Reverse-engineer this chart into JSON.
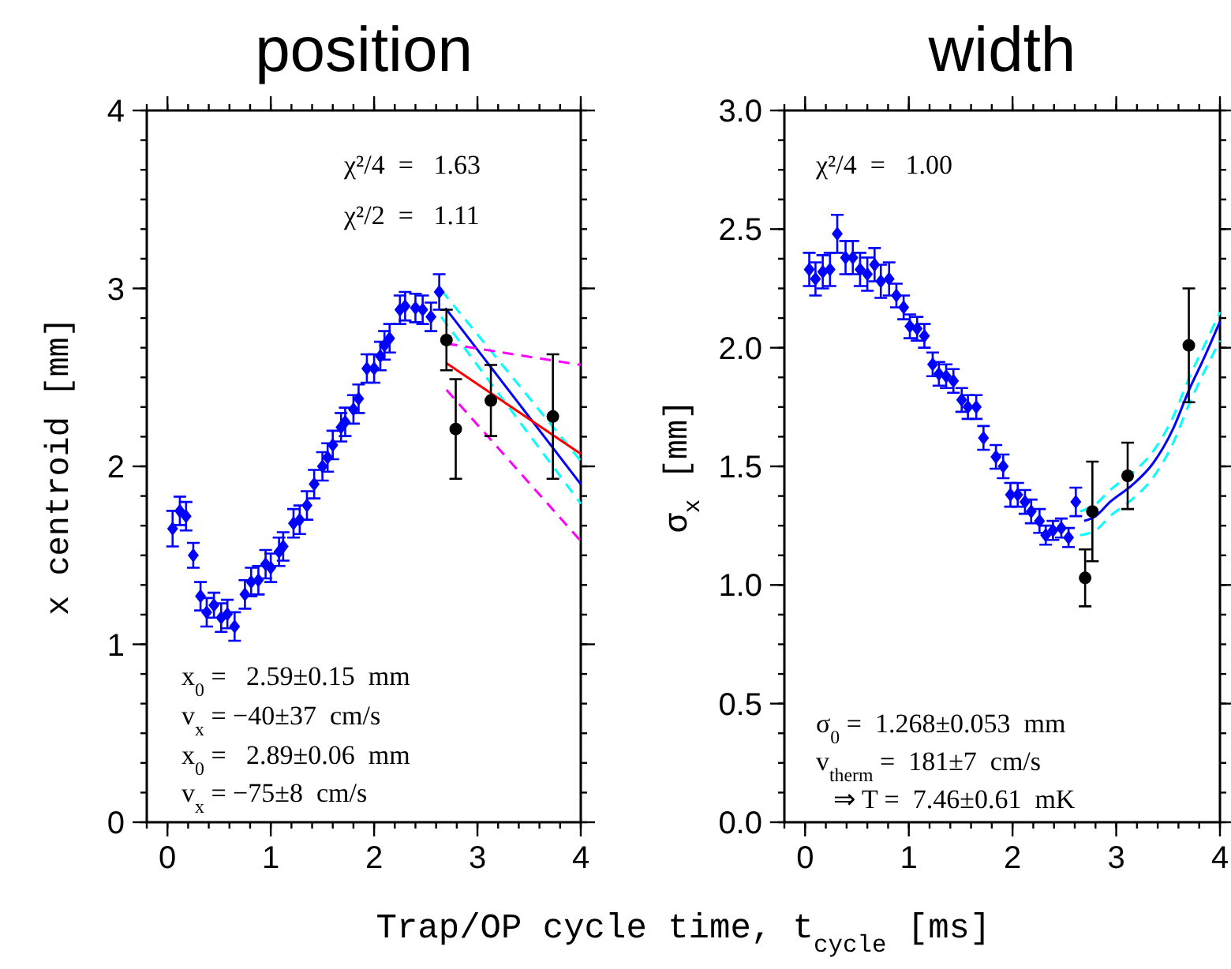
{
  "chart_data": [
    {
      "type": "scatter",
      "title": "position",
      "xlabel": "Trap/OP cycle time, t$_{cycle}$ [ms]",
      "ylabel": "x centroid [mm]",
      "xlim": [
        -0.2,
        4
      ],
      "xticks": [
        0,
        1,
        2,
        3,
        4
      ],
      "ylim": [
        0,
        4
      ],
      "yticks": [
        0,
        1,
        2,
        3,
        4
      ],
      "grid": false,
      "annotations": [
        "χ²/4  =   1.63",
        "χ²/2  =   1.11",
        "x$_{0}$ =   2.59±0.15  mm",
        "v$_{x}$ = −40±37  cm/s",
        "x$_{0}$ =   2.89±0.06  mm",
        "v$_{x}$ = −75±8  cm/s"
      ],
      "series": [
        {
          "type": "scatter",
          "marker": "diamond",
          "color": "#0000ff",
          "x": [
            0.05,
            0.12,
            0.18,
            0.25,
            0.32,
            0.38,
            0.45,
            0.52,
            0.58,
            0.65,
            0.75,
            0.81,
            0.88,
            0.95,
            1.0,
            1.08,
            1.12,
            1.22,
            1.28,
            1.35,
            1.42,
            1.5,
            1.55,
            1.6,
            1.68,
            1.72,
            1.8,
            1.85,
            1.93,
            2.0,
            2.06,
            2.1,
            2.15,
            2.25,
            2.3,
            2.4,
            2.47,
            2.55,
            2.63
          ],
          "values": [
            1.65,
            1.75,
            1.72,
            1.5,
            1.27,
            1.18,
            1.22,
            1.15,
            1.17,
            1.1,
            1.28,
            1.35,
            1.36,
            1.45,
            1.43,
            1.52,
            1.55,
            1.68,
            1.7,
            1.78,
            1.9,
            2.0,
            2.05,
            2.12,
            2.22,
            2.25,
            2.32,
            2.38,
            2.55,
            2.55,
            2.62,
            2.68,
            2.72,
            2.88,
            2.9,
            2.89,
            2.88,
            2.84,
            2.98
          ],
          "errors": [
            0.1,
            0.08,
            0.08,
            0.07,
            0.08,
            0.08,
            0.07,
            0.08,
            0.08,
            0.08,
            0.08,
            0.08,
            0.08,
            0.08,
            0.08,
            0.08,
            0.08,
            0.08,
            0.08,
            0.08,
            0.08,
            0.08,
            0.08,
            0.08,
            0.08,
            0.08,
            0.08,
            0.08,
            0.08,
            0.08,
            0.08,
            0.08,
            0.08,
            0.08,
            0.08,
            0.08,
            0.08,
            0.08,
            0.1
          ]
        },
        {
          "type": "scatter",
          "marker": "circle",
          "color": "#000000",
          "x": [
            2.7,
            2.79,
            3.13,
            3.73
          ],
          "values": [
            2.71,
            2.21,
            2.37,
            2.28
          ],
          "errors": [
            0.17,
            0.28,
            0.2,
            0.35
          ]
        },
        {
          "type": "line",
          "line_style": "dashed",
          "color": "#00ffff",
          "x": [
            2.65,
            4.0
          ],
          "values": [
            2.99,
            2.03
          ]
        },
        {
          "type": "line",
          "line_style": "dashed",
          "color": "#00ffff",
          "x": [
            2.65,
            4.0
          ],
          "values": [
            2.84,
            1.79
          ]
        },
        {
          "type": "line",
          "line_style": "solid",
          "color": "#0000ff",
          "x": [
            2.69,
            4.0
          ],
          "values": [
            2.89,
            1.9
          ]
        },
        {
          "type": "line",
          "line_style": "dashed",
          "color": "#ff00ff",
          "x": [
            2.7,
            4.0
          ],
          "values": [
            2.69,
            2.57
          ]
        },
        {
          "type": "line",
          "line_style": "dashed",
          "color": "#ff00ff",
          "x": [
            2.7,
            4.0
          ],
          "values": [
            2.43,
            1.58
          ]
        },
        {
          "type": "line",
          "line_style": "solid",
          "color": "#ff0000",
          "x": [
            2.7,
            4.0
          ],
          "values": [
            2.58,
            2.07
          ]
        }
      ]
    },
    {
      "type": "scatter",
      "title": "width",
      "ylabel": "σ$_{x}$ [mm]",
      "xlim": [
        -0.2,
        4
      ],
      "xticks": [
        0,
        1,
        2,
        3,
        4
      ],
      "ylim": [
        0,
        3
      ],
      "yticks": [
        {
          "value": 0,
          "label": "0.0"
        },
        {
          "value": 0.5,
          "label": "0.5"
        },
        {
          "value": 1,
          "label": "1.0"
        },
        {
          "value": 1.5,
          "label": "1.5"
        },
        {
          "value": 2,
          "label": "2.0"
        },
        {
          "value": 2.5,
          "label": "2.5"
        },
        {
          "value": 3,
          "label": "3.0"
        }
      ],
      "grid": false,
      "annotations": [
        "χ²/4  =   1.00",
        "σ$_{0}$ =  1.268±0.053  mm",
        "v$_{therm}$ =  181±7  cm/s",
        "⇒ T =  7.46±0.61  mK"
      ],
      "series": [
        {
          "type": "scatter",
          "marker": "diamond",
          "color": "#0000ff",
          "x": [
            0.04,
            0.1,
            0.17,
            0.24,
            0.31,
            0.39,
            0.46,
            0.53,
            0.6,
            0.67,
            0.73,
            0.81,
            0.88,
            0.95,
            1.01,
            1.08,
            1.15,
            1.23,
            1.29,
            1.36,
            1.43,
            1.51,
            1.57,
            1.65,
            1.72,
            1.84,
            1.91,
            1.98,
            2.05,
            2.12,
            2.18,
            2.26,
            2.32,
            2.39,
            2.47,
            2.54,
            2.61
          ],
          "values": [
            2.33,
            2.29,
            2.32,
            2.33,
            2.48,
            2.38,
            2.38,
            2.33,
            2.31,
            2.35,
            2.28,
            2.29,
            2.22,
            2.17,
            2.09,
            2.08,
            2.05,
            1.93,
            1.89,
            1.88,
            1.86,
            1.78,
            1.75,
            1.75,
            1.62,
            1.54,
            1.5,
            1.38,
            1.38,
            1.35,
            1.31,
            1.27,
            1.21,
            1.23,
            1.24,
            1.2,
            1.35
          ],
          "errors": [
            0.07,
            0.07,
            0.07,
            0.07,
            0.08,
            0.07,
            0.07,
            0.07,
            0.07,
            0.07,
            0.07,
            0.07,
            0.05,
            0.05,
            0.05,
            0.05,
            0.05,
            0.05,
            0.05,
            0.05,
            0.05,
            0.05,
            0.05,
            0.05,
            0.05,
            0.05,
            0.05,
            0.05,
            0.05,
            0.05,
            0.05,
            0.05,
            0.04,
            0.04,
            0.04,
            0.04,
            0.06
          ]
        },
        {
          "type": "scatter",
          "marker": "circle",
          "color": "#000000",
          "x": [
            2.7,
            2.77,
            3.11,
            3.7
          ],
          "values": [
            1.03,
            1.31,
            1.46,
            2.01
          ],
          "errors": [
            0.12,
            0.21,
            0.14,
            0.24
          ]
        },
        {
          "type": "line",
          "line_style": "dashed",
          "color": "#00ffff",
          "x": [
            2.65,
            2.8,
            2.94,
            3.15,
            3.35,
            3.55,
            3.7,
            3.85,
            4.0
          ],
          "values": [
            1.31,
            1.34,
            1.4,
            1.47,
            1.56,
            1.71,
            1.87,
            2.01,
            2.15
          ]
        },
        {
          "type": "line",
          "line_style": "dashed",
          "color": "#00ffff",
          "x": [
            2.65,
            2.8,
            2.94,
            3.15,
            3.35,
            3.55,
            3.7,
            3.85,
            4.0
          ],
          "values": [
            1.21,
            1.23,
            1.29,
            1.36,
            1.45,
            1.6,
            1.76,
            1.9,
            2.03
          ]
        },
        {
          "type": "line",
          "line_style": "solid",
          "color": "#0000ff",
          "x": [
            2.69,
            2.8,
            2.94,
            3.15,
            3.35,
            3.55,
            3.7,
            3.85,
            4.0
          ],
          "values": [
            1.27,
            1.29,
            1.35,
            1.42,
            1.51,
            1.66,
            1.82,
            1.96,
            2.11
          ]
        }
      ]
    }
  ]
}
